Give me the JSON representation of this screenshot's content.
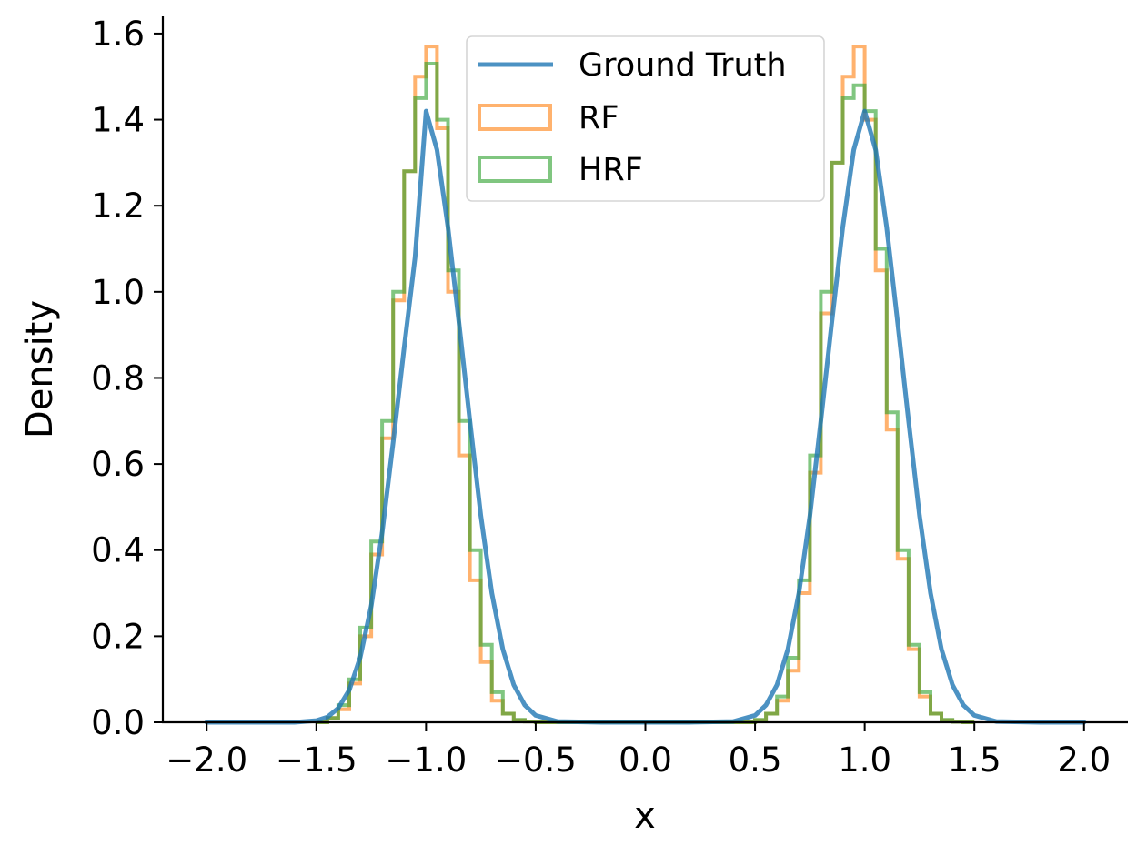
{
  "chart_data": {
    "type": "line",
    "xlabel": "x",
    "ylabel": "Density",
    "xlim": [
      -2.2,
      2.2
    ],
    "ylim": [
      0.0,
      1.64
    ],
    "xticks": [
      -2.0,
      -1.5,
      -1.0,
      -0.5,
      0.0,
      0.5,
      1.0,
      1.5,
      2.0
    ],
    "xtick_labels": [
      "−2.0",
      "−1.5",
      "−1.0",
      "−0.5",
      "0.0",
      "0.5",
      "1.0",
      "1.5",
      "2.0"
    ],
    "yticks": [
      0.0,
      0.2,
      0.4,
      0.6,
      0.8,
      1.0,
      1.2,
      1.4,
      1.6
    ],
    "ytick_labels": [
      "0.0",
      "0.2",
      "0.4",
      "0.6",
      "0.8",
      "1.0",
      "1.2",
      "1.4",
      "1.6"
    ],
    "grid": false,
    "legend_position": "top-center",
    "series": [
      {
        "name": "Ground Truth",
        "kind": "line",
        "color": "#1f77b4",
        "x": [
          -2.0,
          -1.8,
          -1.6,
          -1.5,
          -1.45,
          -1.4,
          -1.35,
          -1.3,
          -1.25,
          -1.2,
          -1.15,
          -1.1,
          -1.05,
          -1.0,
          -0.95,
          -0.9,
          -0.85,
          -0.8,
          -0.75,
          -0.7,
          -0.65,
          -0.6,
          -0.55,
          -0.5,
          -0.4,
          -0.2,
          0.0,
          0.2,
          0.4,
          0.5,
          0.55,
          0.6,
          0.65,
          0.7,
          0.75,
          0.8,
          0.85,
          0.9,
          0.95,
          1.0,
          1.05,
          1.1,
          1.15,
          1.2,
          1.25,
          1.3,
          1.35,
          1.4,
          1.45,
          1.5,
          1.6,
          1.8,
          2.0
        ],
        "y": [
          0.0,
          0.0,
          0.0,
          0.004,
          0.012,
          0.033,
          0.075,
          0.151,
          0.27,
          0.44,
          0.65,
          0.87,
          1.08,
          1.42,
          1.33,
          1.15,
          0.93,
          0.7,
          0.48,
          0.3,
          0.17,
          0.087,
          0.04,
          0.016,
          0.002,
          0.0,
          0.0,
          0.0,
          0.002,
          0.016,
          0.04,
          0.087,
          0.17,
          0.3,
          0.48,
          0.7,
          0.93,
          1.15,
          1.33,
          1.42,
          1.33,
          1.15,
          0.93,
          0.7,
          0.48,
          0.3,
          0.17,
          0.087,
          0.04,
          0.016,
          0.002,
          0.0,
          0.0
        ]
      },
      {
        "name": "RF",
        "kind": "step",
        "color": "#ff7f0e",
        "x": [
          -1.5,
          -1.45,
          -1.4,
          -1.35,
          -1.3,
          -1.25,
          -1.2,
          -1.15,
          -1.1,
          -1.05,
          -1.0,
          -0.95,
          -0.9,
          -0.85,
          -0.8,
          -0.75,
          -0.7,
          -0.65,
          -0.6,
          -0.55,
          -0.5,
          0.5,
          0.55,
          0.6,
          0.65,
          0.7,
          0.75,
          0.8,
          0.85,
          0.9,
          0.95,
          1.0,
          1.05,
          1.1,
          1.15,
          1.2,
          1.25,
          1.3,
          1.35,
          1.4,
          1.45,
          1.5
        ],
        "y": [
          0.0,
          0.01,
          0.03,
          0.09,
          0.2,
          0.39,
          0.66,
          0.98,
          1.28,
          1.5,
          1.57,
          1.38,
          1.0,
          0.62,
          0.33,
          0.14,
          0.05,
          0.02,
          0.005,
          0.002,
          0.0,
          0.005,
          0.02,
          0.05,
          0.12,
          0.3,
          0.58,
          0.95,
          1.3,
          1.5,
          1.57,
          1.4,
          1.05,
          0.68,
          0.38,
          0.17,
          0.06,
          0.02,
          0.005,
          0.001,
          0.0,
          0.0
        ]
      },
      {
        "name": "HRF",
        "kind": "step",
        "color": "#2ca02c",
        "x": [
          -1.5,
          -1.45,
          -1.4,
          -1.35,
          -1.3,
          -1.25,
          -1.2,
          -1.15,
          -1.1,
          -1.05,
          -1.0,
          -0.95,
          -0.9,
          -0.85,
          -0.8,
          -0.75,
          -0.7,
          -0.65,
          -0.6,
          -0.55,
          -0.5,
          0.5,
          0.55,
          0.6,
          0.65,
          0.7,
          0.75,
          0.8,
          0.85,
          0.9,
          0.95,
          1.0,
          1.05,
          1.1,
          1.15,
          1.2,
          1.25,
          1.3,
          1.35,
          1.4,
          1.45,
          1.5
        ],
        "y": [
          0.0,
          0.01,
          0.04,
          0.1,
          0.22,
          0.42,
          0.7,
          1.0,
          1.28,
          1.45,
          1.53,
          1.4,
          1.05,
          0.7,
          0.4,
          0.18,
          0.07,
          0.02,
          0.006,
          0.002,
          0.0,
          0.006,
          0.02,
          0.06,
          0.15,
          0.33,
          0.62,
          1.0,
          1.3,
          1.45,
          1.48,
          1.42,
          1.1,
          0.72,
          0.4,
          0.18,
          0.07,
          0.02,
          0.006,
          0.001,
          0.0,
          0.0
        ]
      }
    ]
  }
}
